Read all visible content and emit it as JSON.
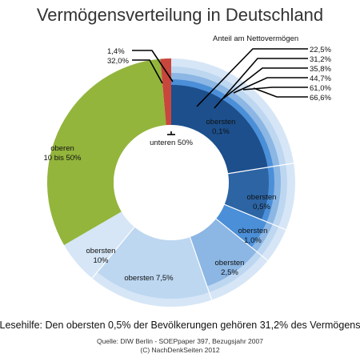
{
  "chart_data": {
    "type": "pie",
    "title": "Vermögensverteilung in Deutschland",
    "legend_title": "Anteil am Nettovermögen",
    "groups": [
      {
        "label_line1": "unteren 50%",
        "label_line2": "",
        "share": 1.4
      },
      {
        "label_line1": "oberen",
        "label_line2": "10 bis 50%",
        "share": 32.0
      },
      {
        "label_line1": "obersten",
        "label_line2": "10%",
        "share": 66.6
      },
      {
        "label_line1": "obersten 7,5%",
        "label_line2": "",
        "share": 61.0
      },
      {
        "label_line1": "obersten",
        "label_line2": "2,5%",
        "share": 44.7
      },
      {
        "label_line1": "obersten",
        "label_line2": "1,0%",
        "share": 35.8
      },
      {
        "label_line1": "obersten",
        "label_line2": "0,5%",
        "share": 31.2
      },
      {
        "label_line1": "obersten",
        "label_line2": "0,1%",
        "share": 22.5
      }
    ],
    "percent_labels": [
      "1,4%",
      "32,0%",
      "22,5%",
      "31,2%",
      "35,8%",
      "44,7%",
      "61,0%",
      "66,6%"
    ],
    "colors": {
      "unteren": "#c9463d",
      "oberen": "#93b53c",
      "ring_10": "#d6e6f6",
      "ring_75": "#bdd7f1",
      "ring_25": "#8cb6e3",
      "ring_10pct": "#4b8fd8",
      "ring_05": "#2c64a4",
      "ring_01": "#1c4f8c"
    }
  },
  "annotation": "Lesehilfe: Den obersten 0,5% der Bevölkerungen gehören 31,2% des Vermögens",
  "source_line1": "Quelle: DIW Berlin - SOEPpaper 397, Bezugsjahr 2007",
  "source_line2": "(C) NachDenkSeiten 2012"
}
